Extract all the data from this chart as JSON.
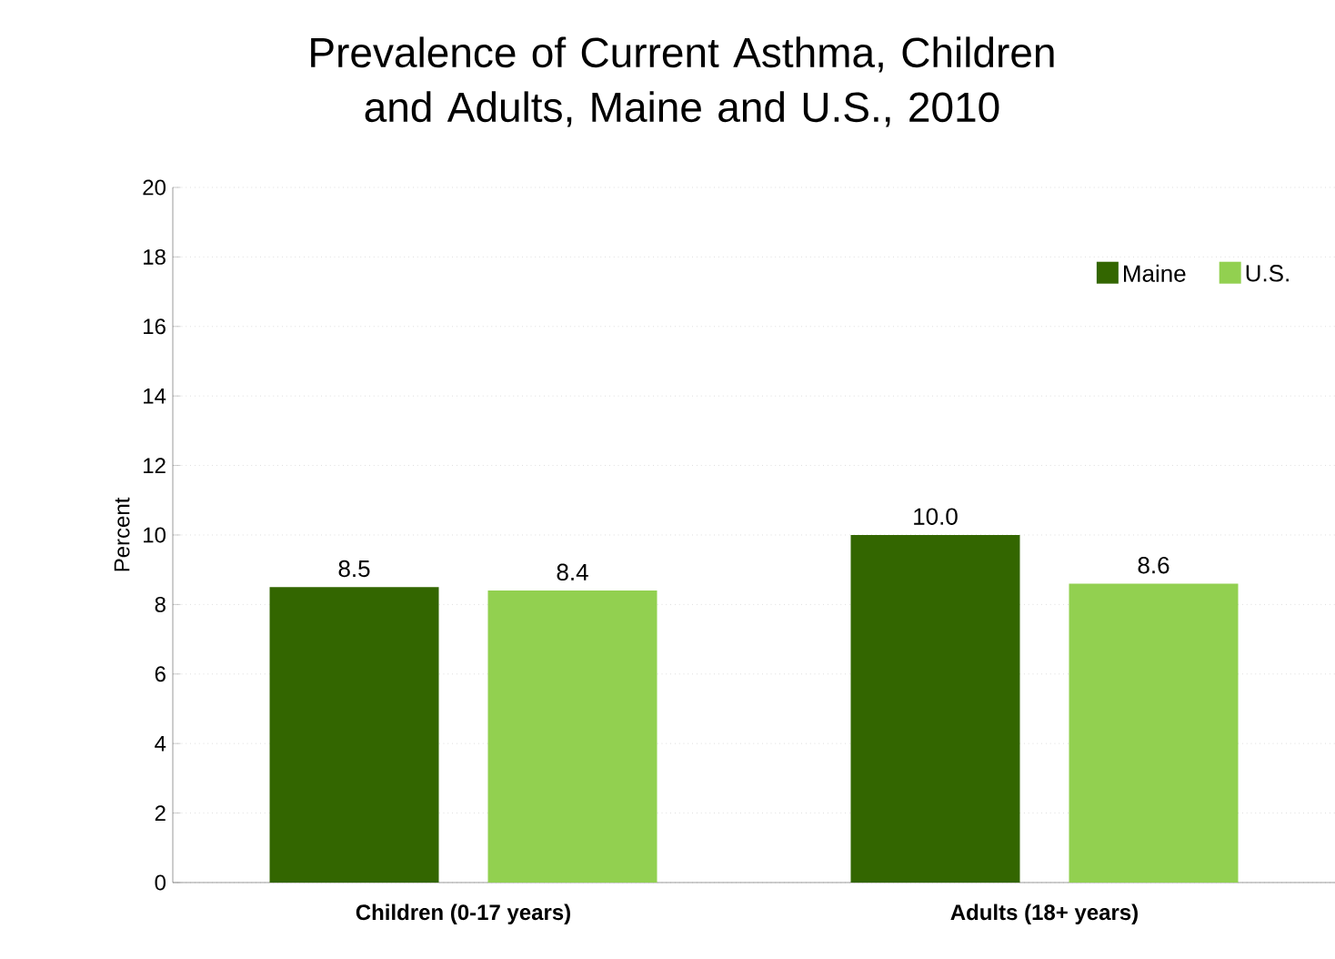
{
  "chart_data": {
    "type": "bar",
    "title": "Prevalence of Current Asthma, Children and Adults, Maine and U.S., 2010",
    "ylabel": "Percent",
    "categories": [
      "Children (0-17 years)",
      "Adults (18+ years)"
    ],
    "series": [
      {
        "name": "Maine",
        "color": "#336600",
        "values": [
          8.5,
          10.0
        ],
        "value_labels": [
          "8.5",
          "10.0"
        ]
      },
      {
        "name": "U.S.",
        "color": "#92d050",
        "values": [
          8.4,
          8.6
        ],
        "value_labels": [
          "8.4",
          "8.6"
        ]
      }
    ],
    "ylim": [
      0,
      20
    ],
    "yticks": [
      0,
      2,
      4,
      6,
      8,
      10,
      12,
      14,
      16,
      18,
      20
    ],
    "grid": "y",
    "legend": "top right"
  }
}
